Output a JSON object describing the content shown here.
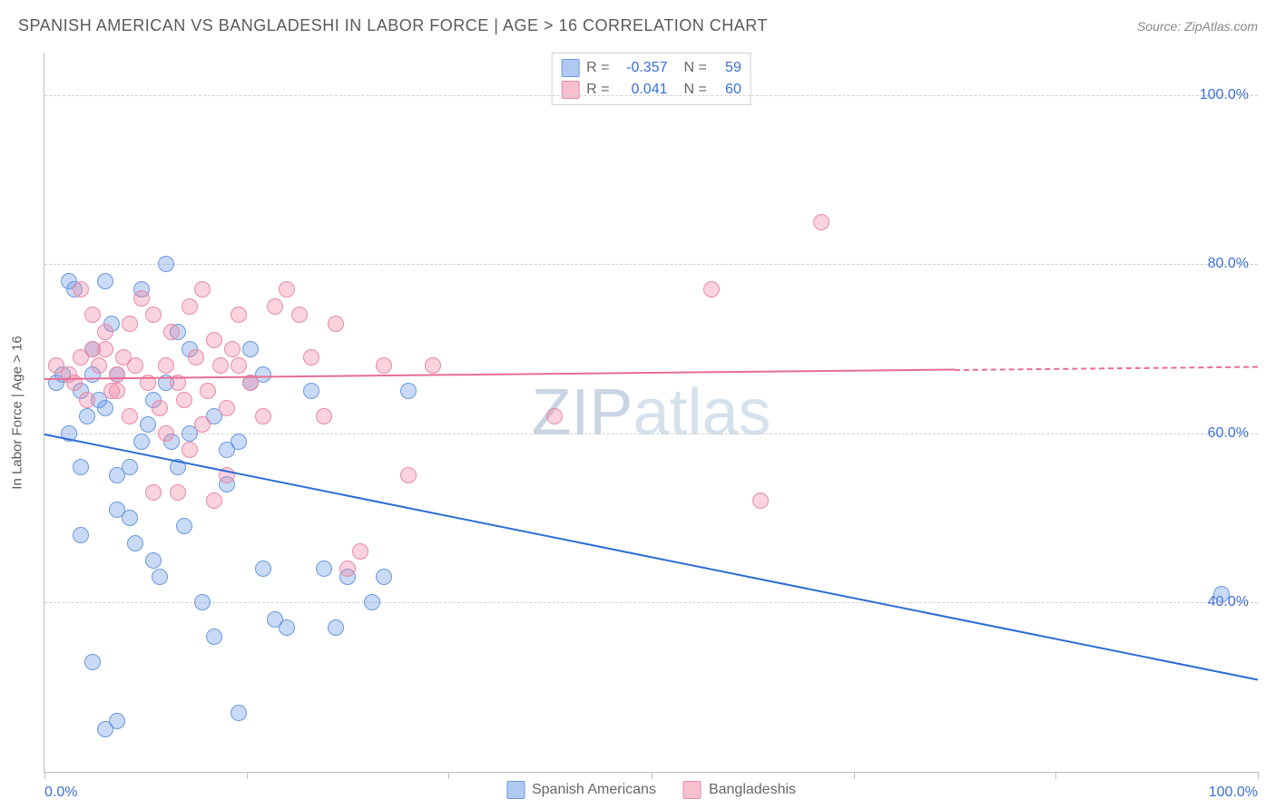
{
  "header": {
    "title": "SPANISH AMERICAN VS BANGLADESHI IN LABOR FORCE | AGE > 16 CORRELATION CHART",
    "source": "Source: ZipAtlas.com"
  },
  "chart": {
    "type": "scatter",
    "ylabel": "In Labor Force | Age > 16",
    "background_color": "#ffffff",
    "grid_color": "#d0d0d0",
    "axis_color": "#bfbfbf",
    "tick_label_color": "#3b6fd6",
    "tick_fontsize": 16,
    "ylabel_color": "#5a5a5a",
    "xlim": [
      0,
      100
    ],
    "ylim": [
      20,
      105
    ],
    "yticks": [
      {
        "v": 40,
        "label": "40.0%"
      },
      {
        "v": 60,
        "label": "60.0%"
      },
      {
        "v": 80,
        "label": "80.0%"
      },
      {
        "v": 100,
        "label": "100.0%"
      }
    ],
    "xticks_minor": [
      0,
      16.7,
      33.3,
      50,
      66.7,
      83.3,
      100
    ],
    "xticks_labeled": [
      {
        "v": 0,
        "label": "0.0%"
      },
      {
        "v": 100,
        "label": "100.0%"
      }
    ],
    "point_radius": 9,
    "series": [
      {
        "name": "Spanish Americans",
        "fill": "rgba(100, 150, 230, 0.35)",
        "stroke": "#6a98de",
        "trend_color": "#2d6cd6",
        "trend": {
          "x0": 0,
          "y0": 60,
          "x1": 100,
          "y1": 31,
          "dash_from_x": null
        },
        "points": [
          [
            1,
            66
          ],
          [
            1.5,
            67
          ],
          [
            2,
            78
          ],
          [
            2.5,
            77
          ],
          [
            3,
            65
          ],
          [
            3.5,
            62
          ],
          [
            4,
            67
          ],
          [
            4.5,
            64
          ],
          [
            5,
            78
          ],
          [
            5.5,
            73
          ],
          [
            6,
            55
          ],
          [
            6,
            51
          ],
          [
            7,
            50
          ],
          [
            7.5,
            47
          ],
          [
            8,
            77
          ],
          [
            8.5,
            61
          ],
          [
            9,
            45
          ],
          [
            9.5,
            43
          ],
          [
            10,
            66
          ],
          [
            10.5,
            59
          ],
          [
            11,
            56
          ],
          [
            11.5,
            49
          ],
          [
            12,
            70
          ],
          [
            4,
            33
          ],
          [
            5,
            25
          ],
          [
            6,
            26
          ],
          [
            7,
            56
          ],
          [
            8,
            59
          ],
          [
            9,
            64
          ],
          [
            10,
            80
          ],
          [
            11,
            72
          ],
          [
            12,
            60
          ],
          [
            13,
            40
          ],
          [
            14,
            36
          ],
          [
            15,
            54
          ],
          [
            16,
            27
          ],
          [
            17,
            66
          ],
          [
            18,
            44
          ],
          [
            19,
            38
          ],
          [
            14,
            62
          ],
          [
            15,
            58
          ],
          [
            16,
            59
          ],
          [
            17,
            70
          ],
          [
            18,
            67
          ],
          [
            20,
            37
          ],
          [
            22,
            65
          ],
          [
            23,
            44
          ],
          [
            24,
            37
          ],
          [
            25,
            43
          ],
          [
            27,
            40
          ],
          [
            28,
            43
          ],
          [
            30,
            65
          ],
          [
            2,
            60
          ],
          [
            3,
            56
          ],
          [
            4,
            70
          ],
          [
            5,
            63
          ],
          [
            6,
            67
          ],
          [
            97,
            41
          ],
          [
            3,
            48
          ]
        ]
      },
      {
        "name": "Bangladeshis",
        "fill": "rgba(240, 130, 160, 0.35)",
        "stroke": "#e88aa8",
        "trend_color": "#e76d93",
        "trend": {
          "x0": 0,
          "y0": 66.5,
          "x1": 100,
          "y1": 68,
          "dash_from_x": 75
        },
        "points": [
          [
            1,
            68
          ],
          [
            2,
            67
          ],
          [
            2.5,
            66
          ],
          [
            3,
            69
          ],
          [
            3.5,
            64
          ],
          [
            4,
            70
          ],
          [
            4.5,
            68
          ],
          [
            5,
            72
          ],
          [
            5.5,
            65
          ],
          [
            6,
            67
          ],
          [
            6.5,
            69
          ],
          [
            7,
            73
          ],
          [
            7.5,
            68
          ],
          [
            8,
            76
          ],
          [
            8.5,
            66
          ],
          [
            9,
            74
          ],
          [
            9.5,
            63
          ],
          [
            10,
            68
          ],
          [
            10.5,
            72
          ],
          [
            11,
            66
          ],
          [
            11.5,
            64
          ],
          [
            12,
            75
          ],
          [
            12.5,
            69
          ],
          [
            13,
            77
          ],
          [
            13.5,
            65
          ],
          [
            14,
            71
          ],
          [
            14.5,
            68
          ],
          [
            15,
            63
          ],
          [
            15.5,
            70
          ],
          [
            16,
            74
          ],
          [
            9,
            53
          ],
          [
            10,
            60
          ],
          [
            11,
            53
          ],
          [
            12,
            58
          ],
          [
            13,
            61
          ],
          [
            14,
            52
          ],
          [
            15,
            55
          ],
          [
            16,
            68
          ],
          [
            17,
            66
          ],
          [
            18,
            62
          ],
          [
            19,
            75
          ],
          [
            20,
            77
          ],
          [
            21,
            74
          ],
          [
            22,
            69
          ],
          [
            23,
            62
          ],
          [
            24,
            73
          ],
          [
            26,
            46
          ],
          [
            28,
            68
          ],
          [
            30,
            55
          ],
          [
            32,
            68
          ],
          [
            25,
            44
          ],
          [
            42,
            62
          ],
          [
            55,
            77
          ],
          [
            59,
            52
          ],
          [
            64,
            85
          ],
          [
            3,
            77
          ],
          [
            4,
            74
          ],
          [
            5,
            70
          ],
          [
            6,
            65
          ],
          [
            7,
            62
          ]
        ]
      }
    ],
    "stats_box": {
      "rows": [
        {
          "swatch_fill": "rgba(100,150,230,0.5)",
          "swatch_stroke": "#6a98de",
          "r_label": "R =",
          "r_val": "-0.357",
          "n_label": "N =",
          "n_val": "59"
        },
        {
          "swatch_fill": "rgba(240,130,160,0.5)",
          "swatch_stroke": "#e88aa8",
          "r_label": "R =",
          "r_val": "0.041",
          "n_label": "N =",
          "n_val": "60"
        }
      ]
    },
    "bottom_legend": [
      {
        "swatch_fill": "rgba(100,150,230,0.5)",
        "swatch_stroke": "#6a98de",
        "label": "Spanish Americans"
      },
      {
        "swatch_fill": "rgba(240,130,160,0.5)",
        "swatch_stroke": "#e88aa8",
        "label": "Bangladeshis"
      }
    ],
    "watermark": {
      "text_a": "ZIP",
      "text_b": "atlas"
    }
  }
}
